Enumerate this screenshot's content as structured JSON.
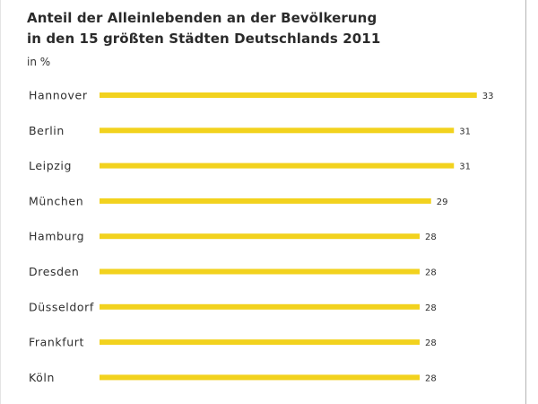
{
  "chart_data": {
    "type": "bar",
    "orientation": "horizontal",
    "title_line1": "Anteil der Alleinlebenden an der Bevölkerung",
    "title_line2": "in den 15 größten Städten Deutschlands 2011",
    "unit_label": "in %",
    "categories": [
      "Hannover",
      "Berlin",
      "Leipzig",
      "München",
      "Hamburg",
      "Dresden",
      "Düsseldorf",
      "Frankfurt",
      "Köln"
    ],
    "values": [
      33,
      31,
      31,
      29,
      28,
      28,
      28,
      28,
      28
    ],
    "bar_color": "#f2d21e",
    "grid": false,
    "legend": "none"
  }
}
